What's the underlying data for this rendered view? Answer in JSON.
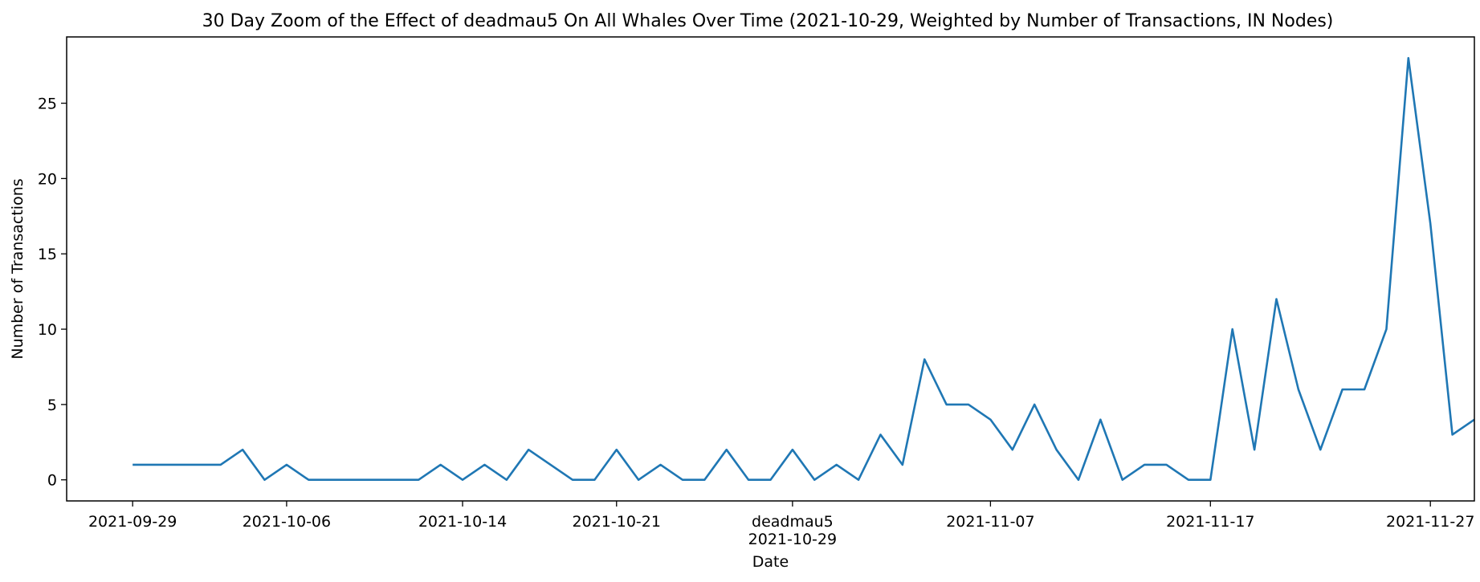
{
  "chart_data": {
    "type": "line",
    "title": "30 Day Zoom of the Effect of deadmau5 On All Whales Over Time (2021-10-29, Weighted by Number of Transactions, IN Nodes)",
    "xlabel": "Date",
    "ylabel": "Number of Transactions",
    "x_start": "2021-09-29",
    "x_end": "2021-11-27",
    "xlim": [
      "2021-09-26",
      "2021-11-29"
    ],
    "ylim": [
      -1.4,
      29.4
    ],
    "yticks": [
      0,
      5,
      10,
      15,
      20,
      25
    ],
    "xticks": [
      {
        "date": "2021-09-29",
        "label": "2021-09-29"
      },
      {
        "date": "2021-10-06",
        "label": "2021-10-06"
      },
      {
        "date": "2021-10-14",
        "label": "2021-10-14"
      },
      {
        "date": "2021-10-21",
        "label": "2021-10-21"
      },
      {
        "date": "2021-10-29",
        "label": "2021-10-29",
        "annotation": "deadmau5"
      },
      {
        "date": "2021-11-07",
        "label": "2021-11-07"
      },
      {
        "date": "2021-11-17",
        "label": "2021-11-17"
      },
      {
        "date": "2021-11-27",
        "label": "2021-11-27"
      }
    ],
    "grid": false,
    "line_color": "#1f77b4",
    "series": [
      {
        "values": [
          1,
          1,
          1,
          1,
          1,
          2,
          0,
          1,
          0,
          0,
          0,
          0,
          0,
          0,
          1,
          0,
          1,
          0,
          2,
          1,
          0,
          0,
          2,
          0,
          1,
          0,
          0,
          2,
          0,
          0,
          2,
          0,
          1,
          0,
          3,
          1,
          8,
          5,
          5,
          4,
          2,
          5,
          2,
          0,
          4,
          0,
          1,
          1,
          0,
          0,
          10,
          2,
          12,
          6,
          2,
          6,
          6,
          10,
          28,
          17,
          3,
          4
        ]
      }
    ]
  }
}
